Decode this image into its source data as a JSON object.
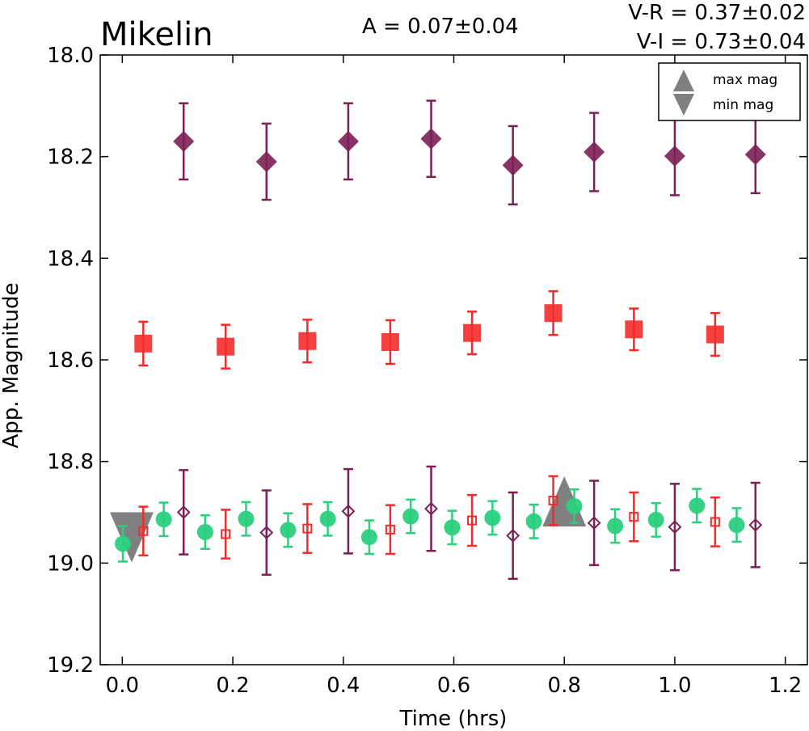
{
  "chart_data": {
    "type": "scatter",
    "title": "Mikelin",
    "annotations": {
      "amplitude": "A  = 0.07±0.04",
      "v_r": "V-R = 0.37±0.02",
      "v_i": "V-I  = 0.73±0.04"
    },
    "xlabel": "Time (hrs)",
    "ylabel": "App. Magnitude",
    "xlim": [
      -0.04,
      1.24
    ],
    "ylim": [
      19.2,
      18.0
    ],
    "y_inverted": true,
    "grid": false,
    "legend_position": "top-right",
    "x_ticks": [
      "0.0",
      "0.2",
      "0.4",
      "0.6",
      "0.8",
      "1.0",
      "1.2"
    ],
    "y_ticks": [
      "18.0",
      "18.2",
      "18.4",
      "18.6",
      "18.8",
      "19.0",
      "19.2"
    ],
    "legend": [
      {
        "label": "max mag",
        "marker": "triangle-up",
        "color": "#808080"
      },
      {
        "label": "min mag",
        "marker": "triangle-down",
        "color": "#808080"
      }
    ],
    "series": [
      {
        "marker": "diamond",
        "filled": true,
        "color": "#7b1f55",
        "points": [
          {
            "x": 0.111,
            "y": 18.17,
            "err": 0.075
          },
          {
            "x": 0.261,
            "y": 18.21,
            "err": 0.075
          },
          {
            "x": 0.409,
            "y": 18.17,
            "err": 0.075
          },
          {
            "x": 0.559,
            "y": 18.165,
            "err": 0.075
          },
          {
            "x": 0.707,
            "y": 18.217,
            "err": 0.077
          },
          {
            "x": 0.854,
            "y": 18.191,
            "err": 0.077
          },
          {
            "x": 1.0,
            "y": 18.199,
            "err": 0.077
          },
          {
            "x": 1.146,
            "y": 18.196,
            "err": 0.076
          }
        ]
      },
      {
        "marker": "square",
        "filled": true,
        "color": "#f52a2a",
        "points": [
          {
            "x": 0.038,
            "y": 18.568,
            "err": 0.043
          },
          {
            "x": 0.187,
            "y": 18.574,
            "err": 0.043
          },
          {
            "x": 0.335,
            "y": 18.563,
            "err": 0.042
          },
          {
            "x": 0.485,
            "y": 18.565,
            "err": 0.043
          },
          {
            "x": 0.633,
            "y": 18.547,
            "err": 0.042
          },
          {
            "x": 0.78,
            "y": 18.508,
            "err": 0.043
          },
          {
            "x": 0.926,
            "y": 18.54,
            "err": 0.041
          },
          {
            "x": 1.073,
            "y": 18.55,
            "err": 0.042
          }
        ]
      },
      {
        "marker": "circle",
        "filled": true,
        "color": "#2ad07e",
        "points": [
          {
            "x": 0.001,
            "y": 18.962,
            "err": 0.035
          },
          {
            "x": 0.075,
            "y": 18.914,
            "err": 0.033
          },
          {
            "x": 0.15,
            "y": 18.939,
            "err": 0.033
          },
          {
            "x": 0.224,
            "y": 18.913,
            "err": 0.033
          },
          {
            "x": 0.3,
            "y": 18.935,
            "err": 0.033
          },
          {
            "x": 0.372,
            "y": 18.913,
            "err": 0.033
          },
          {
            "x": 0.447,
            "y": 18.949,
            "err": 0.033
          },
          {
            "x": 0.522,
            "y": 18.908,
            "err": 0.033
          },
          {
            "x": 0.597,
            "y": 18.93,
            "err": 0.033
          },
          {
            "x": 0.67,
            "y": 18.911,
            "err": 0.033
          },
          {
            "x": 0.745,
            "y": 18.918,
            "err": 0.033
          },
          {
            "x": 0.818,
            "y": 18.888,
            "err": 0.033
          },
          {
            "x": 0.892,
            "y": 18.927,
            "err": 0.033
          },
          {
            "x": 0.966,
            "y": 18.915,
            "err": 0.033
          },
          {
            "x": 1.04,
            "y": 18.887,
            "err": 0.033
          },
          {
            "x": 1.112,
            "y": 18.925,
            "err": 0.033
          }
        ]
      },
      {
        "marker": "square",
        "filled": false,
        "color": "#f52a2a",
        "points": [
          {
            "x": 0.038,
            "y": 18.937,
            "err": 0.048
          },
          {
            "x": 0.187,
            "y": 18.943,
            "err": 0.048
          },
          {
            "x": 0.335,
            "y": 18.932,
            "err": 0.048
          },
          {
            "x": 0.485,
            "y": 18.934,
            "err": 0.048
          },
          {
            "x": 0.633,
            "y": 18.916,
            "err": 0.05
          },
          {
            "x": 0.78,
            "y": 18.877,
            "err": 0.048
          },
          {
            "x": 0.926,
            "y": 18.909,
            "err": 0.048
          },
          {
            "x": 1.073,
            "y": 18.919,
            "err": 0.048
          }
        ]
      },
      {
        "marker": "diamond",
        "filled": false,
        "color": "#7b1f55",
        "points": [
          {
            "x": 0.111,
            "y": 18.9,
            "err": 0.083
          },
          {
            "x": 0.261,
            "y": 18.94,
            "err": 0.083
          },
          {
            "x": 0.409,
            "y": 18.898,
            "err": 0.083
          },
          {
            "x": 0.559,
            "y": 18.893,
            "err": 0.083
          },
          {
            "x": 0.707,
            "y": 18.946,
            "err": 0.085
          },
          {
            "x": 0.854,
            "y": 18.921,
            "err": 0.083
          },
          {
            "x": 1.0,
            "y": 18.929,
            "err": 0.085
          },
          {
            "x": 1.146,
            "y": 18.925,
            "err": 0.083
          }
        ]
      }
    ],
    "extrema": [
      {
        "type": "min",
        "marker": "triangle-down",
        "x": 0.017,
        "y": 18.943,
        "color": "#808080"
      },
      {
        "type": "max",
        "marker": "triangle-up",
        "x": 0.8,
        "y": 18.885,
        "color": "#808080"
      }
    ]
  }
}
